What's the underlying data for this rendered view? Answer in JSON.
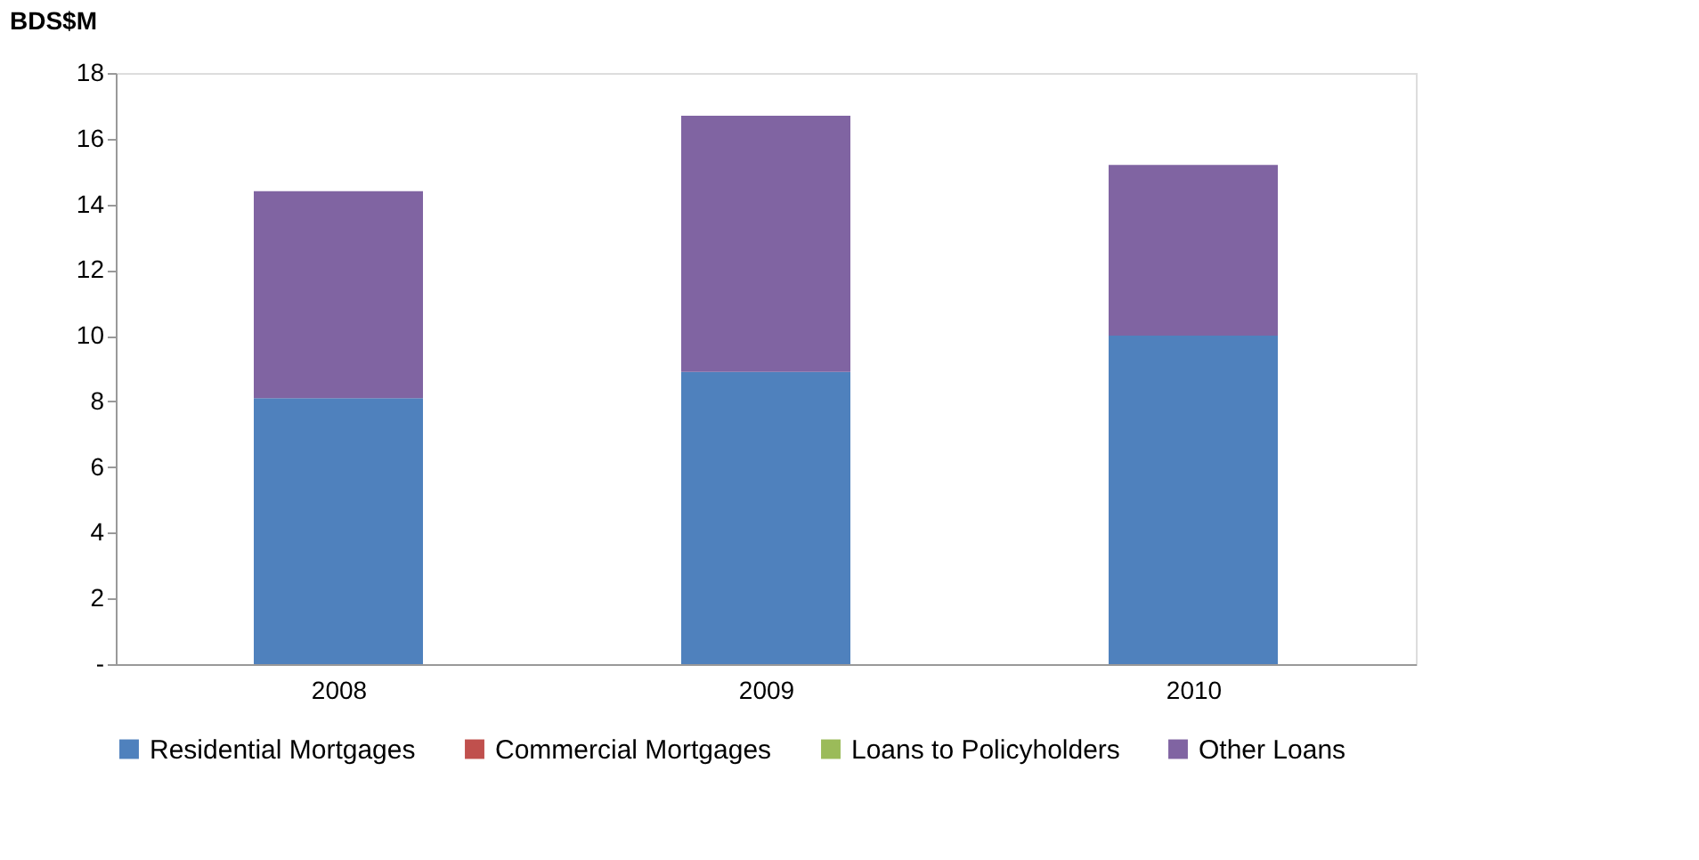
{
  "chart_data": {
    "type": "bar",
    "stacked": true,
    "ylabel": "BDS$M",
    "categories": [
      "2008",
      "2009",
      "2010"
    ],
    "series": [
      {
        "name": "Residential Mortgages",
        "color": "#4f81bd",
        "values": [
          8.1,
          8.9,
          10.0
        ]
      },
      {
        "name": "Commercial Mortgages",
        "color": "#c0504d",
        "values": [
          0,
          0,
          0
        ]
      },
      {
        "name": "Loans to Policyholders",
        "color": "#9bbb59",
        "values": [
          0,
          0,
          0
        ]
      },
      {
        "name": "Other Loans",
        "color": "#8064a2",
        "values": [
          6.3,
          7.8,
          5.2
        ]
      }
    ],
    "ylim": [
      0,
      18
    ],
    "yticks": [
      {
        "value": 0,
        "label": "-"
      },
      2,
      4,
      6,
      8,
      10,
      12,
      14,
      16,
      18
    ],
    "grid": false,
    "legend": "bottom"
  }
}
